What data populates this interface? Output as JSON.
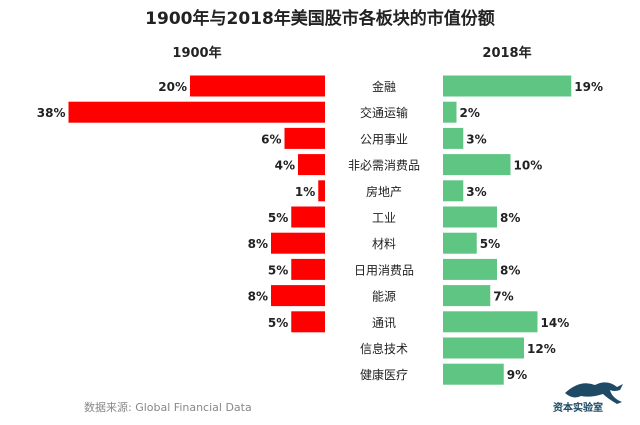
{
  "chart_data": {
    "type": "bar",
    "title": "1900年与2018年美国股市各板块的市值份额",
    "categories": [
      "金融",
      "交通运输",
      "公用事业",
      "非必需消费品",
      "房地产",
      "工业",
      "材料",
      "日用消费品",
      "能源",
      "通讯",
      "信息技术",
      "健康医疗"
    ],
    "series": [
      {
        "name": "1900年",
        "values": [
          20,
          38,
          6,
          4,
          1,
          5,
          8,
          5,
          8,
          5,
          null,
          null
        ],
        "color": "#ff0000"
      },
      {
        "name": "2018年",
        "values": [
          19,
          2,
          3,
          10,
          3,
          8,
          5,
          8,
          7,
          14,
          12,
          9
        ],
        "color": "#5fc583"
      }
    ],
    "value_suffix": "%",
    "orientation": "horizontal-butterfly",
    "grid": false
  },
  "source": "数据来源: Global Financial Data",
  "logo_text": "资本实验室"
}
